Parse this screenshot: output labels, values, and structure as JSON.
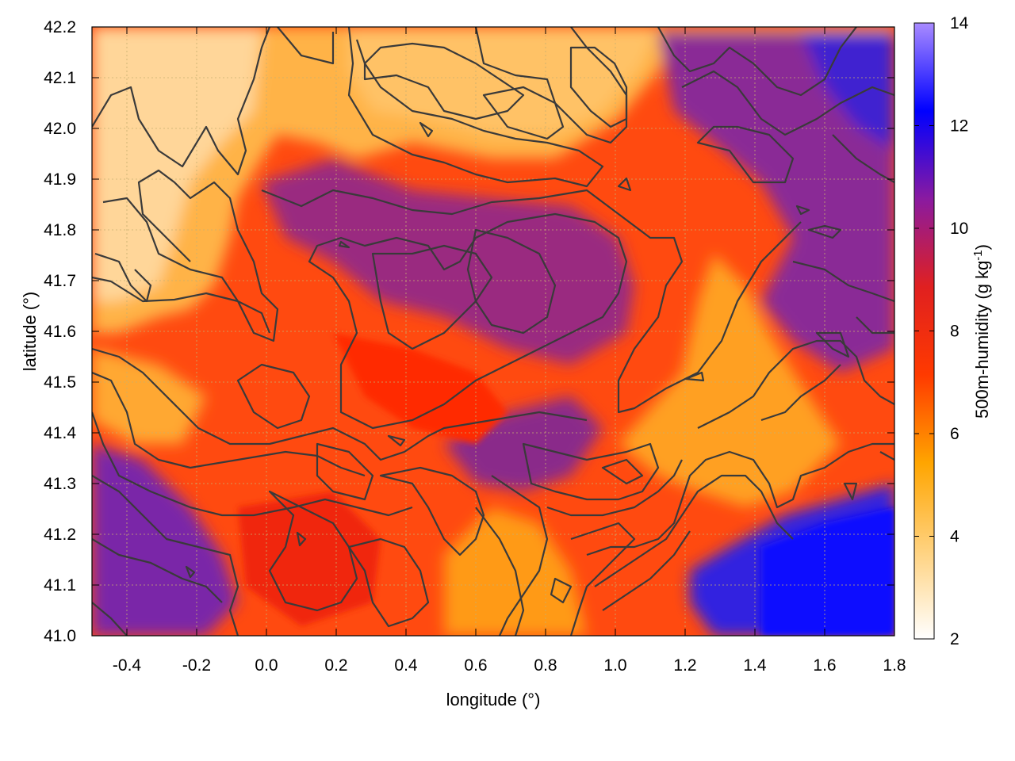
{
  "chart_data": {
    "type": "heatmap",
    "xlabel": "longitude (°)",
    "ylabel": "latitude (°)",
    "colorbar_label": "500m-humidity (g kg",
    "colorbar_label_sup": "-1",
    "colorbar_label_end": ")",
    "xlim": [
      -0.5,
      1.8
    ],
    "ylim": [
      41.0,
      42.2
    ],
    "xticks": [
      "-0.4",
      "-0.2",
      "0.0",
      "0.2",
      "0.4",
      "0.6",
      "0.8",
      "1.0",
      "1.2",
      "1.4",
      "1.6",
      "1.8"
    ],
    "xtick_values": [
      -0.4,
      -0.2,
      0.0,
      0.2,
      0.4,
      0.6,
      0.8,
      1.0,
      1.2,
      1.4,
      1.6,
      1.8
    ],
    "yticks": [
      "41.0",
      "41.1",
      "41.2",
      "41.3",
      "41.4",
      "41.5",
      "41.6",
      "41.7",
      "41.8",
      "41.9",
      "42.0",
      "42.1",
      "42.2"
    ],
    "ytick_values": [
      41.0,
      41.1,
      41.2,
      41.3,
      41.4,
      41.5,
      41.6,
      41.7,
      41.8,
      41.9,
      42.0,
      42.1,
      42.2
    ],
    "colorbar_ticks": [
      "2",
      "4",
      "6",
      "8",
      "10",
      "12",
      "14"
    ],
    "colorbar_values": [
      2,
      4,
      6,
      8,
      10,
      12,
      14
    ],
    "crange": [
      2,
      14
    ],
    "grid": true,
    "grid_color": "#c8b070",
    "colormap": [
      "#ffffff",
      "#ffd27f",
      "#ffa500",
      "#ff3a00",
      "#e02020",
      "#8a1aa0",
      "#0000ff",
      "#a98bff"
    ],
    "contour_color": "#3a3a3a",
    "regions": {
      "north_dry": "light orange (~3-5 g/kg) across the north-west and north-centre",
      "central_moist": "red to purple (~8-10 g/kg) in the central basin",
      "south_east_sea": "blue (~11-12 g/kg) near lon 1.4-1.8, lat 41.0-41.3",
      "north_east": "purple-blue (~10-11 g/kg) near lon 1.6-1.8, lat 42.0-42.2"
    }
  }
}
